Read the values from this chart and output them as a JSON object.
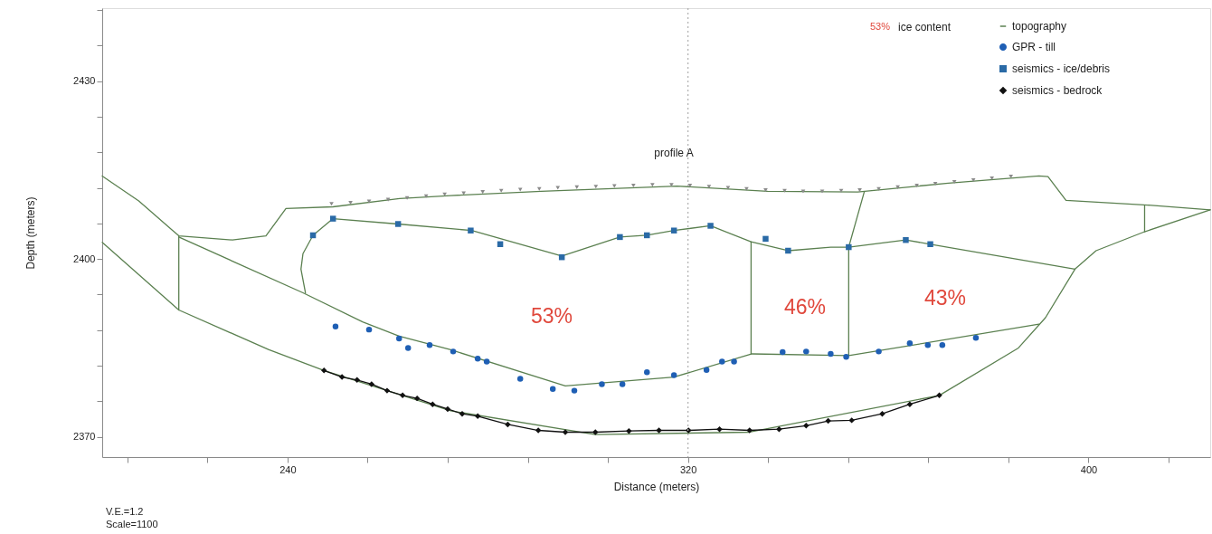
{
  "chart_data": {
    "type": "line",
    "xlabel": "Distance (meters)",
    "ylabel": "Depth (meters)",
    "xlim": [
      203,
      424.3
    ],
    "ylim": [
      2366.6,
      2442.3
    ],
    "xticks": [
      {
        "value": 208,
        "label": null
      },
      {
        "value": 224,
        "label": null
      },
      240,
      {
        "value": 256,
        "label": null
      },
      {
        "value": 272,
        "label": null
      },
      {
        "value": 288,
        "label": null
      },
      {
        "value": 304,
        "label": null
      },
      320,
      {
        "value": 336,
        "label": null
      },
      {
        "value": 352,
        "label": null
      },
      {
        "value": 368,
        "label": null
      },
      {
        "value": 384,
        "label": null
      },
      400,
      {
        "value": 416,
        "label": null
      }
    ],
    "yticks": [
      2370,
      {
        "value": 2376,
        "label": null
      },
      {
        "value": 2382,
        "label": null
      },
      {
        "value": 2388,
        "label": null
      },
      {
        "value": 2394,
        "label": null
      },
      2400,
      {
        "value": 2406,
        "label": null
      },
      {
        "value": 2412,
        "label": null
      },
      {
        "value": 2418,
        "label": null
      },
      {
        "value": 2424,
        "label": null
      },
      2430,
      {
        "value": 2436,
        "label": null
      },
      {
        "value": 2442,
        "label": null
      }
    ],
    "grid": false,
    "legend": "top right",
    "ref_lines": [
      {
        "axis": "x",
        "value": 320,
        "color": "#b0b0b0",
        "line_style": "dotted"
      }
    ],
    "annotations": [
      "profile A",
      "V.E.=1.2",
      "Scale=1100",
      "53%",
      "ice content",
      "53%",
      "46%",
      "43%"
    ],
    "series": [
      {
        "color": "#5b8050",
        "x": [
          218.3,
          243.1,
          255,
          262.3,
          272.6,
          295.5,
          317.2,
          332.8,
          352.1,
          390.1
        ],
        "values": [
          2403.7,
          2394.3,
          2389.4,
          2387,
          2384.7,
          2378.6,
          2380.1,
          2384,
          2383.7,
          2389
        ]
      },
      {
        "color": "#5b8050",
        "x": [
          203,
          218.3,
          236.3,
          247.3,
          272.6,
          301.5,
          332.3,
          370.2,
          386,
          391.4,
          397.3,
          401.5,
          411.2,
          424.3
        ],
        "values": [
          2402.8,
          2391.4,
          2384.7,
          2381.2,
          2374.4,
          2370.4,
          2370.8,
          2377,
          2385,
          2390.1,
          2398.3,
          2401.4,
          2404.6,
          2408.3
        ]
      },
      {
        "color": "#5b8050",
        "x": [
          218.3,
          218.3
        ],
        "values": [
          2403.9,
          2391.4
        ]
      },
      {
        "color": "#5b8050",
        "x": [
          411.2,
          411.2
        ],
        "values": [
          2409.1,
          2404.6
        ]
      },
      {
        "color": "#5b8050",
        "x": [
          243.6,
          242.7,
          243.1,
          245.1,
          249.1,
          262.1,
          276.8,
          294.8,
          306.4,
          311.8,
          317.2,
          324.5,
          332.6,
          340,
          348.5,
          352.1,
          363.5,
          368.4,
          397.3
        ],
        "values": [
          2394.3,
          2398.3,
          2400.9,
          2404,
          2406.8,
          2405.9,
          2404.8,
          2400.5,
          2403.7,
          2404,
          2404.8,
          2405.6,
          2402.9,
          2401.4,
          2402,
          2402,
          2403.2,
          2402.5,
          2398.3
        ]
      },
      {
        "color": "#5b8050",
        "x": [
          332.6,
          332.6
        ],
        "values": [
          2402.9,
          2384
        ]
      },
      {
        "color": "#5b8050",
        "x": [
          355.2,
          352.1,
          352.1
        ],
        "values": [
          2411.3,
          2402,
          2383.7
        ]
      },
      {
        "name": "topography",
        "color": "#5b8050",
        "x": [
          203,
          210.3,
          218.3,
          229,
          235.7,
          239.7,
          249.1,
          262.4,
          272.6,
          290.7,
          317.8,
          335.9,
          353.9,
          372,
          390.1,
          391.9,
          395.5,
          411.8,
          424.3
        ],
        "values": [
          2414,
          2409.8,
          2403.9,
          2403.2,
          2403.9,
          2408.5,
          2408.8,
          2410.2,
          2410.7,
          2411.4,
          2412.3,
          2411.4,
          2411.3,
          2412.8,
          2414,
          2413.9,
          2409.9,
          2409.1,
          2408.3
        ]
      },
      {
        "type": "scatter",
        "marker": "triangle",
        "color": "#8a8a8a",
        "x": [
          248.8,
          252.6,
          256.3,
          260.1,
          263.9,
          267.7,
          271.4,
          275.2,
          279,
          282.7,
          286.5,
          290.3,
          294,
          297.8,
          301.6,
          305.3,
          309.1,
          312.9,
          316.7,
          320.4,
          324.2,
          328,
          331.7,
          335.5,
          339.3,
          343,
          346.8,
          350.6,
          354.3,
          358.1,
          361.9,
          365.7,
          369.4,
          373.2,
          377,
          380.7,
          384.5
        ],
        "values": [
          2409.3,
          2409.5,
          2409.7,
          2410,
          2410.3,
          2410.6,
          2410.9,
          2411.1,
          2411.3,
          2411.5,
          2411.7,
          2411.8,
          2412,
          2412.1,
          2412.2,
          2412.3,
          2412.4,
          2412.5,
          2412.5,
          2412.4,
          2412.2,
          2412,
          2411.8,
          2411.6,
          2411.5,
          2411.4,
          2411.4,
          2411.5,
          2411.6,
          2411.8,
          2412.1,
          2412.4,
          2412.7,
          2413,
          2413.3,
          2413.6,
          2413.9
        ]
      },
      {
        "type": "scatter",
        "name": "GPR - till",
        "marker": "circle",
        "color": "#1f5fb4",
        "x": [
          249.6,
          256.3,
          262.3,
          264.1,
          268.4,
          273.1,
          278,
          279.8,
          286.5,
          293,
          297.3,
          302.8,
          306.9,
          311.8,
          317.2,
          323.7,
          326.8,
          329.2,
          338.9,
          343.6,
          348.5,
          351.6,
          358.1,
          364.3,
          367.9,
          370.8,
          377.5
        ],
        "values": [
          2388.6,
          2388.1,
          2386.6,
          2385,
          2385.5,
          2384.4,
          2383.2,
          2382.7,
          2379.8,
          2378.1,
          2377.8,
          2378.9,
          2378.9,
          2380.9,
          2380.4,
          2381.3,
          2382.7,
          2382.7,
          2384.3,
          2384.4,
          2384,
          2383.5,
          2384.4,
          2385.8,
          2385.5,
          2385.5,
          2386.7
        ]
      },
      {
        "type": "scatter",
        "name": "seismics - ice/debris",
        "marker": "square",
        "color": "#2a6aa6",
        "x": [
          249.1,
          245.1,
          262.1,
          276.6,
          282.5,
          294.8,
          306.4,
          311.8,
          317.2,
          324.5,
          335.5,
          340,
          352.1,
          363.5,
          368.4
        ],
        "values": [
          2406.8,
          2404,
          2405.9,
          2404.8,
          2402.5,
          2400.3,
          2403.7,
          2404,
          2404.8,
          2405.6,
          2403.4,
          2401.4,
          2402,
          2403.2,
          2402.5
        ]
      },
      {
        "name": "seismics - bedrock",
        "marker": "diamond",
        "color": "#111111",
        "x": [
          247.3,
          250.9,
          253.9,
          256.8,
          259.9,
          263,
          265.9,
          269,
          272,
          274.9,
          278,
          284,
          290.1,
          295.5,
          301.5,
          308.2,
          314.2,
          320.1,
          326.3,
          332.3,
          338.2,
          343.6,
          348,
          352.7,
          358.8,
          364.3,
          370.2
        ],
        "values": [
          2381.2,
          2380.1,
          2379.6,
          2378.9,
          2377.8,
          2377,
          2376.5,
          2375.5,
          2374.7,
          2373.9,
          2373.5,
          2372.1,
          2371.1,
          2370.8,
          2370.8,
          2371,
          2371.1,
          2371.1,
          2371.3,
          2371.1,
          2371.3,
          2371.9,
          2372.7,
          2372.8,
          2373.9,
          2375.5,
          2377
        ]
      }
    ]
  }
}
